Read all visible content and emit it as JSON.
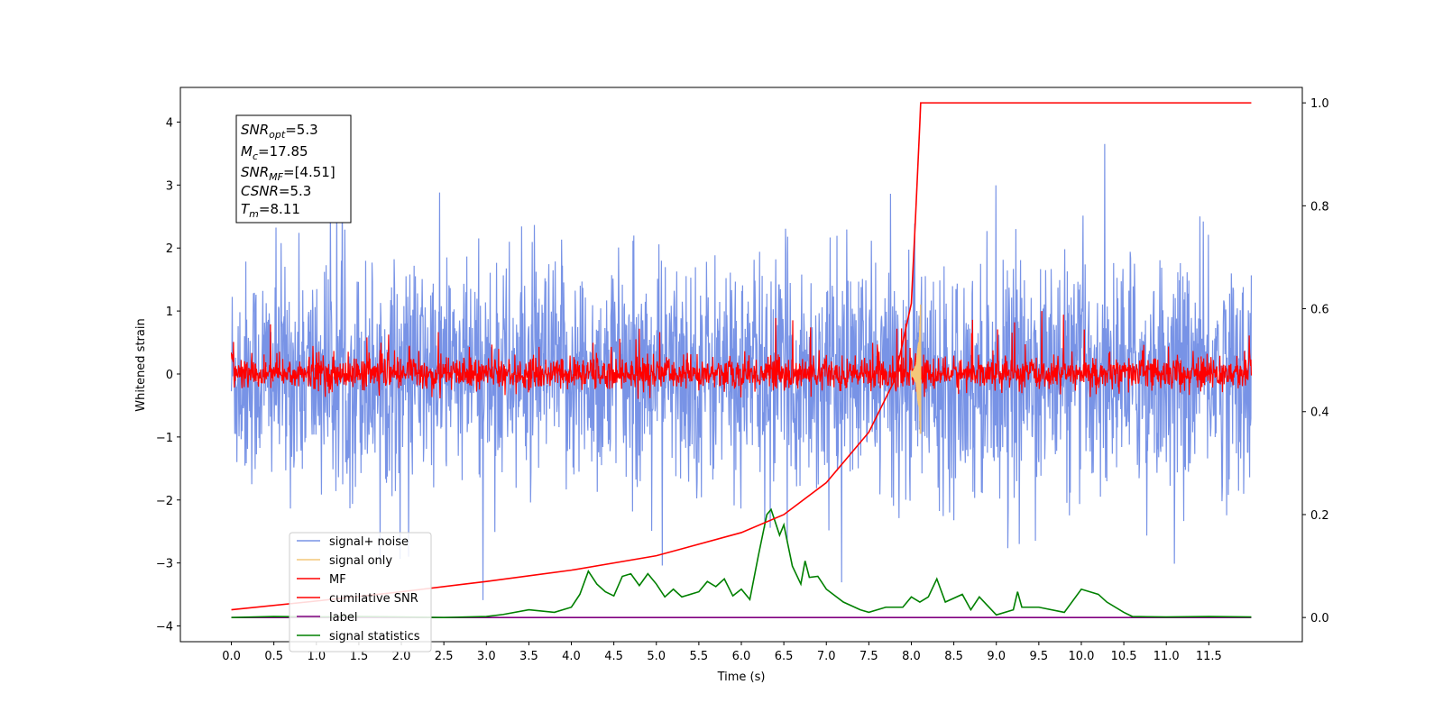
{
  "chart_data": {
    "type": "line",
    "xlabel": "Time (s)",
    "ylabel": "Whitened strain",
    "xlim": [
      -0.6,
      12.6
    ],
    "ylim": [
      -4.25,
      4.55
    ],
    "y2lim": [
      -0.047,
      1.03
    ],
    "grid": false,
    "legend_position": "lower-left",
    "x_ticks": [
      "0.0",
      "0.5",
      "1.0",
      "1.5",
      "2.0",
      "2.5",
      "3.0",
      "3.5",
      "4.0",
      "4.5",
      "5.0",
      "5.5",
      "6.0",
      "6.5",
      "7.0",
      "7.5",
      "8.0",
      "8.5",
      "9.0",
      "9.5",
      "10.0",
      "10.5",
      "11.0",
      "11.5"
    ],
    "y_ticks": [
      "4",
      "3",
      "2",
      "1",
      "0",
      "−1",
      "−2",
      "−3",
      "−4"
    ],
    "y2_ticks": [
      "1.0",
      "0.8",
      "0.6",
      "0.4",
      "0.2",
      "0.0"
    ],
    "annotation": {
      "lines": [
        {
          "base": "SNR",
          "sub": "opt",
          "value": "=5.3"
        },
        {
          "base": "M",
          "sub": "c",
          "value": "=17.85"
        },
        {
          "base": "SNR",
          "sub": "MF",
          "value": "=[4.51]"
        },
        {
          "base": "CSNR",
          "sub": "",
          "value": "=5.3"
        },
        {
          "base": "T",
          "sub": "m",
          "value": "=8.11"
        }
      ]
    },
    "series": [
      {
        "name": "signal+ noise",
        "color": "#7893e6",
        "axis": "left",
        "x_range": [
          0,
          12
        ],
        "approx_range": [
          -3.7,
          4.2
        ],
        "note_values": "noise, std ~1"
      },
      {
        "name": "signal only",
        "color": "#f4c77a",
        "axis": "left",
        "x_range": [
          8.0,
          8.11
        ],
        "approx_peak": [
          -0.95,
          1.15
        ]
      },
      {
        "name": "MF",
        "color": "#ff0000",
        "axis": "left",
        "x_range": [
          0,
          12
        ],
        "approx_range": [
          -0.4,
          1.0
        ]
      },
      {
        "name": "cumilative SNR",
        "color": "#ff0000",
        "axis": "right",
        "x": [
          0.0,
          1.0,
          2.0,
          3.0,
          4.0,
          5.0,
          6.0,
          6.5,
          7.0,
          7.5,
          7.8,
          8.0,
          8.05,
          8.1,
          8.11,
          12.0
        ],
        "y": [
          0.015,
          0.032,
          0.05,
          0.07,
          0.092,
          0.12,
          0.165,
          0.2,
          0.262,
          0.36,
          0.46,
          0.61,
          0.78,
          0.96,
          1.0,
          1.0
        ]
      },
      {
        "name": "label",
        "color": "#800080",
        "axis": "right",
        "x": [
          0.0,
          12.0
        ],
        "y": [
          0.0,
          0.0
        ]
      },
      {
        "name": "signal statistics",
        "color": "#008000",
        "axis": "right",
        "x": [
          0.0,
          0.5,
          1.0,
          1.5,
          2.0,
          2.5,
          3.0,
          3.2,
          3.5,
          3.8,
          4.0,
          4.1,
          4.2,
          4.3,
          4.4,
          4.5,
          4.6,
          4.7,
          4.8,
          4.9,
          5.0,
          5.1,
          5.2,
          5.3,
          5.5,
          5.6,
          5.7,
          5.8,
          5.9,
          6.0,
          6.1,
          6.2,
          6.3,
          6.35,
          6.45,
          6.5,
          6.6,
          6.7,
          6.75,
          6.8,
          6.9,
          7.0,
          7.2,
          7.4,
          7.5,
          7.7,
          7.9,
          8.0,
          8.1,
          8.2,
          8.3,
          8.4,
          8.6,
          8.7,
          8.8,
          9.0,
          9.2,
          9.25,
          9.3,
          9.5,
          9.8,
          10.0,
          10.1,
          10.2,
          10.3,
          10.5,
          10.6,
          11.0,
          11.5,
          12.0
        ],
        "y": [
          0.0,
          0.002,
          0.001,
          0.002,
          0.001,
          0.0,
          0.002,
          0.006,
          0.015,
          0.01,
          0.02,
          0.045,
          0.09,
          0.065,
          0.05,
          0.042,
          0.08,
          0.085,
          0.062,
          0.085,
          0.065,
          0.04,
          0.055,
          0.04,
          0.05,
          0.07,
          0.06,
          0.075,
          0.042,
          0.055,
          0.035,
          0.12,
          0.2,
          0.21,
          0.16,
          0.18,
          0.1,
          0.065,
          0.11,
          0.078,
          0.08,
          0.055,
          0.03,
          0.015,
          0.01,
          0.02,
          0.02,
          0.04,
          0.03,
          0.04,
          0.075,
          0.03,
          0.045,
          0.015,
          0.04,
          0.005,
          0.015,
          0.05,
          0.02,
          0.02,
          0.01,
          0.055,
          0.05,
          0.045,
          0.03,
          0.01,
          0.002,
          0.001,
          0.002,
          0.001
        ]
      }
    ]
  }
}
